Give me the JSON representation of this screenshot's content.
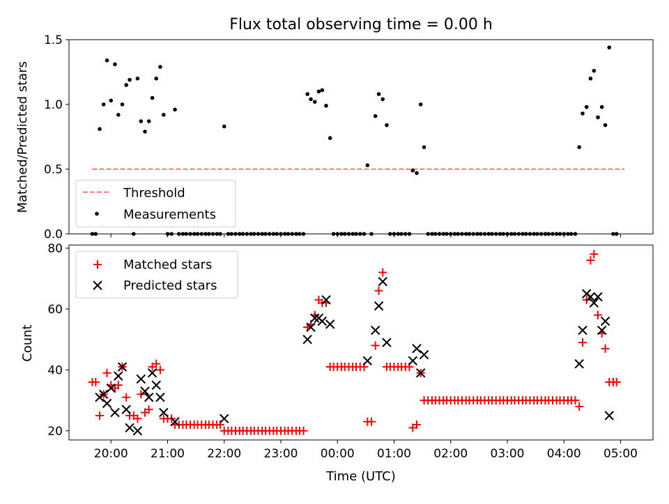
{
  "title": "Flux total observing time = 0.00 h",
  "colors": {
    "threshold": "#ff7f7f",
    "measurement": "#000000",
    "matched": "#ff0000",
    "predicted": "#000000"
  },
  "chart_data": [
    {
      "type": "scatter",
      "ylabel": "Matched/Predicted stars",
      "ylim": [
        0,
        1.5
      ],
      "yticks": [
        0.0,
        0.5,
        1.0,
        1.5
      ],
      "ytick_labels": [
        "0.0",
        "0.5",
        "1.0",
        "1.5"
      ],
      "xlim": [
        -4.33,
        6.07
      ],
      "legend": {
        "placement": "bottom-left",
        "threshold_label": "Threshold",
        "measurements_label": "Measurements"
      },
      "threshold": {
        "value": 0.5,
        "x_range": [
          -4.33,
          5.07
        ]
      },
      "measurements": [
        [
          -4.33,
          0
        ],
        [
          -4.27,
          0
        ],
        [
          -4.2,
          0.81
        ],
        [
          -4.13,
          1.0
        ],
        [
          -4.07,
          1.34
        ],
        [
          -4.0,
          1.03
        ],
        [
          -3.93,
          1.31
        ],
        [
          -3.87,
          0.92
        ],
        [
          -3.8,
          1.0
        ],
        [
          -3.73,
          1.15
        ],
        [
          -3.67,
          1.19
        ],
        [
          -3.6,
          0
        ],
        [
          -3.53,
          1.2
        ],
        [
          -3.47,
          0.87
        ],
        [
          -3.4,
          0.79
        ],
        [
          -3.33,
          0.87
        ],
        [
          -3.27,
          1.05
        ],
        [
          -3.2,
          1.2
        ],
        [
          -3.13,
          1.29
        ],
        [
          -3.07,
          0.92
        ],
        [
          -3.0,
          0
        ],
        [
          -2.93,
          0
        ],
        [
          -2.87,
          0.96
        ],
        [
          -2.8,
          0
        ],
        [
          -2.73,
          0
        ],
        [
          -2.67,
          0
        ],
        [
          -2.6,
          0
        ],
        [
          -2.53,
          0
        ],
        [
          -2.47,
          0
        ],
        [
          -2.4,
          0
        ],
        [
          -2.33,
          0
        ],
        [
          -2.27,
          0
        ],
        [
          -2.2,
          0
        ],
        [
          -2.13,
          0
        ],
        [
          -2.07,
          0
        ],
        [
          -2.0,
          0.83
        ],
        [
          -1.93,
          0
        ],
        [
          -1.87,
          0
        ],
        [
          -1.8,
          0
        ],
        [
          -1.73,
          0
        ],
        [
          -1.67,
          0
        ],
        [
          -1.6,
          0
        ],
        [
          -1.53,
          0
        ],
        [
          -1.47,
          0
        ],
        [
          -1.4,
          0
        ],
        [
          -1.33,
          0
        ],
        [
          -1.27,
          0
        ],
        [
          -1.2,
          0
        ],
        [
          -1.13,
          0
        ],
        [
          -1.07,
          0
        ],
        [
          -1.0,
          0
        ],
        [
          -0.93,
          0
        ],
        [
          -0.87,
          0
        ],
        [
          -0.8,
          0
        ],
        [
          -0.73,
          0
        ],
        [
          -0.67,
          0
        ],
        [
          -0.6,
          0
        ],
        [
          -0.53,
          1.08
        ],
        [
          -0.47,
          1.04
        ],
        [
          -0.4,
          1.02
        ],
        [
          -0.33,
          1.1
        ],
        [
          -0.27,
          1.11
        ],
        [
          -0.2,
          0.99
        ],
        [
          -0.13,
          0.74
        ],
        [
          -0.07,
          0
        ],
        [
          0.0,
          0
        ],
        [
          0.07,
          0
        ],
        [
          0.13,
          0
        ],
        [
          0.2,
          0
        ],
        [
          0.27,
          0
        ],
        [
          0.33,
          0
        ],
        [
          0.4,
          0
        ],
        [
          0.47,
          0
        ],
        [
          0.53,
          0.53
        ],
        [
          0.6,
          0
        ],
        [
          0.67,
          0.91
        ],
        [
          0.73,
          1.08
        ],
        [
          0.8,
          1.04
        ],
        [
          0.87,
          0.84
        ],
        [
          0.93,
          0
        ],
        [
          1.0,
          0
        ],
        [
          1.07,
          0
        ],
        [
          1.13,
          0
        ],
        [
          1.2,
          0
        ],
        [
          1.27,
          0
        ],
        [
          1.33,
          0.49
        ],
        [
          1.4,
          0.47
        ],
        [
          1.47,
          1.0
        ],
        [
          1.53,
          0.67
        ],
        [
          1.6,
          0
        ],
        [
          1.67,
          0
        ],
        [
          1.73,
          0
        ],
        [
          1.8,
          0
        ],
        [
          1.87,
          0
        ],
        [
          1.93,
          0
        ],
        [
          2.0,
          0
        ],
        [
          2.07,
          0
        ],
        [
          2.13,
          0
        ],
        [
          2.2,
          0
        ],
        [
          2.27,
          0
        ],
        [
          2.33,
          0
        ],
        [
          2.4,
          0
        ],
        [
          2.47,
          0
        ],
        [
          2.53,
          0
        ],
        [
          2.6,
          0
        ],
        [
          2.67,
          0
        ],
        [
          2.73,
          0
        ],
        [
          2.8,
          0
        ],
        [
          2.87,
          0
        ],
        [
          2.93,
          0
        ],
        [
          3.0,
          0
        ],
        [
          3.07,
          0
        ],
        [
          3.13,
          0
        ],
        [
          3.2,
          0
        ],
        [
          3.27,
          0
        ],
        [
          3.33,
          0
        ],
        [
          3.4,
          0
        ],
        [
          3.47,
          0
        ],
        [
          3.53,
          0
        ],
        [
          3.6,
          0
        ],
        [
          3.67,
          0
        ],
        [
          3.73,
          0
        ],
        [
          3.8,
          0
        ],
        [
          3.87,
          0
        ],
        [
          3.93,
          0
        ],
        [
          4.0,
          0
        ],
        [
          4.07,
          0
        ],
        [
          4.13,
          0
        ],
        [
          4.2,
          0
        ],
        [
          4.27,
          0.67
        ],
        [
          4.33,
          0.93
        ],
        [
          4.4,
          0.98
        ],
        [
          4.47,
          1.2
        ],
        [
          4.53,
          1.26
        ],
        [
          4.6,
          0.9
        ],
        [
          4.67,
          0.98
        ],
        [
          4.73,
          0.84
        ],
        [
          4.8,
          1.44
        ],
        [
          4.87,
          0
        ],
        [
          4.93,
          0
        ]
      ]
    },
    {
      "type": "scatter",
      "ylabel": "Count",
      "xlabel": "Time (UTC)",
      "ylim": [
        17,
        81
      ],
      "yticks": [
        20,
        40,
        60,
        80
      ],
      "ytick_labels": [
        "20",
        "40",
        "60",
        "80"
      ],
      "xlim": [
        -4.33,
        6.07
      ],
      "xticks": [
        -4,
        -3,
        -2,
        -1,
        0,
        1,
        2,
        3,
        4,
        5
      ],
      "xtick_labels": [
        "20:00",
        "21:00",
        "22:00",
        "23:00",
        "00:00",
        "01:00",
        "02:00",
        "03:00",
        "04:00",
        "05:00"
      ],
      "legend": {
        "placement": "top-left",
        "matched_label": "Matched stars",
        "predicted_label": "Predicted stars"
      },
      "matched": [
        [
          -4.33,
          36
        ],
        [
          -4.27,
          36
        ],
        [
          -4.2,
          25
        ],
        [
          -4.13,
          32
        ],
        [
          -4.07,
          39
        ],
        [
          -4.0,
          35
        ],
        [
          -3.93,
          34
        ],
        [
          -3.87,
          35
        ],
        [
          -3.8,
          41
        ],
        [
          -3.73,
          31
        ],
        [
          -3.67,
          25
        ],
        [
          -3.6,
          25
        ],
        [
          -3.53,
          24
        ],
        [
          -3.47,
          32
        ],
        [
          -3.4,
          26
        ],
        [
          -3.33,
          27
        ],
        [
          -3.27,
          41
        ],
        [
          -3.2,
          42
        ],
        [
          -3.13,
          40
        ],
        [
          -3.07,
          24
        ],
        [
          -3.0,
          24
        ],
        [
          -2.93,
          24
        ],
        [
          -2.87,
          22
        ],
        [
          -2.8,
          22
        ],
        [
          -2.73,
          22
        ],
        [
          -2.67,
          22
        ],
        [
          -2.6,
          22
        ],
        [
          -2.53,
          22
        ],
        [
          -2.47,
          22
        ],
        [
          -2.4,
          22
        ],
        [
          -2.33,
          22
        ],
        [
          -2.27,
          22
        ],
        [
          -2.2,
          22
        ],
        [
          -2.13,
          22
        ],
        [
          -2.07,
          22
        ],
        [
          -2.0,
          20
        ],
        [
          -1.93,
          20
        ],
        [
          -1.87,
          20
        ],
        [
          -1.8,
          20
        ],
        [
          -1.73,
          20
        ],
        [
          -1.67,
          20
        ],
        [
          -1.6,
          20
        ],
        [
          -1.53,
          20
        ],
        [
          -1.47,
          20
        ],
        [
          -1.4,
          20
        ],
        [
          -1.33,
          20
        ],
        [
          -1.27,
          20
        ],
        [
          -1.2,
          20
        ],
        [
          -1.13,
          20
        ],
        [
          -1.07,
          20
        ],
        [
          -1.0,
          20
        ],
        [
          -0.93,
          20
        ],
        [
          -0.87,
          20
        ],
        [
          -0.8,
          20
        ],
        [
          -0.73,
          20
        ],
        [
          -0.67,
          20
        ],
        [
          -0.6,
          20
        ],
        [
          -0.53,
          54
        ],
        [
          -0.47,
          55
        ],
        [
          -0.4,
          58
        ],
        [
          -0.33,
          63
        ],
        [
          -0.27,
          62
        ],
        [
          -0.2,
          62
        ],
        [
          -0.13,
          41
        ],
        [
          -0.07,
          41
        ],
        [
          0.0,
          41
        ],
        [
          0.07,
          41
        ],
        [
          0.13,
          41
        ],
        [
          0.2,
          41
        ],
        [
          0.27,
          41
        ],
        [
          0.33,
          41
        ],
        [
          0.4,
          41
        ],
        [
          0.47,
          41
        ],
        [
          0.53,
          23
        ],
        [
          0.6,
          23
        ],
        [
          0.67,
          48
        ],
        [
          0.73,
          66
        ],
        [
          0.8,
          72
        ],
        [
          0.87,
          41
        ],
        [
          0.93,
          41
        ],
        [
          1.0,
          41
        ],
        [
          1.07,
          41
        ],
        [
          1.13,
          41
        ],
        [
          1.2,
          41
        ],
        [
          1.27,
          41
        ],
        [
          1.33,
          21
        ],
        [
          1.4,
          22
        ],
        [
          1.47,
          39
        ],
        [
          1.53,
          30
        ],
        [
          1.6,
          30
        ],
        [
          1.67,
          30
        ],
        [
          1.73,
          30
        ],
        [
          1.8,
          30
        ],
        [
          1.87,
          30
        ],
        [
          1.93,
          30
        ],
        [
          2.0,
          30
        ],
        [
          2.07,
          30
        ],
        [
          2.13,
          30
        ],
        [
          2.2,
          30
        ],
        [
          2.27,
          30
        ],
        [
          2.33,
          30
        ],
        [
          2.4,
          30
        ],
        [
          2.47,
          30
        ],
        [
          2.53,
          30
        ],
        [
          2.6,
          30
        ],
        [
          2.67,
          30
        ],
        [
          2.73,
          30
        ],
        [
          2.8,
          30
        ],
        [
          2.87,
          30
        ],
        [
          2.93,
          30
        ],
        [
          3.0,
          30
        ],
        [
          3.07,
          30
        ],
        [
          3.13,
          30
        ],
        [
          3.2,
          30
        ],
        [
          3.27,
          30
        ],
        [
          3.33,
          30
        ],
        [
          3.4,
          30
        ],
        [
          3.47,
          30
        ],
        [
          3.53,
          30
        ],
        [
          3.6,
          30
        ],
        [
          3.67,
          30
        ],
        [
          3.73,
          30
        ],
        [
          3.8,
          30
        ],
        [
          3.87,
          30
        ],
        [
          3.93,
          30
        ],
        [
          4.0,
          30
        ],
        [
          4.07,
          30
        ],
        [
          4.13,
          30
        ],
        [
          4.2,
          30
        ],
        [
          4.27,
          28
        ],
        [
          4.33,
          49
        ],
        [
          4.4,
          63
        ],
        [
          4.47,
          76
        ],
        [
          4.53,
          78
        ],
        [
          4.6,
          58
        ],
        [
          4.67,
          52
        ],
        [
          4.73,
          47
        ],
        [
          4.8,
          36
        ],
        [
          4.87,
          36
        ],
        [
          4.93,
          36
        ]
      ],
      "predicted": [
        [
          -4.2,
          31
        ],
        [
          -4.13,
          32
        ],
        [
          -4.07,
          29
        ],
        [
          -4.0,
          34
        ],
        [
          -3.93,
          26
        ],
        [
          -3.87,
          38
        ],
        [
          -3.8,
          41
        ],
        [
          -3.73,
          27
        ],
        [
          -3.67,
          21
        ],
        [
          -3.53,
          20
        ],
        [
          -3.47,
          37
        ],
        [
          -3.4,
          33
        ],
        [
          -3.33,
          31
        ],
        [
          -3.27,
          39
        ],
        [
          -3.2,
          35
        ],
        [
          -3.13,
          31
        ],
        [
          -3.07,
          26
        ],
        [
          -2.87,
          23
        ],
        [
          -2.0,
          24
        ],
        [
          -0.53,
          50
        ],
        [
          -0.47,
          54
        ],
        [
          -0.4,
          57
        ],
        [
          -0.33,
          57
        ],
        [
          -0.27,
          56
        ],
        [
          -0.2,
          63
        ],
        [
          -0.13,
          55
        ],
        [
          0.53,
          43
        ],
        [
          0.67,
          53
        ],
        [
          0.73,
          61
        ],
        [
          0.8,
          69
        ],
        [
          0.87,
          49
        ],
        [
          1.33,
          43
        ],
        [
          1.4,
          47
        ],
        [
          1.47,
          39
        ],
        [
          1.53,
          45
        ],
        [
          4.27,
          42
        ],
        [
          4.33,
          53
        ],
        [
          4.4,
          65
        ],
        [
          4.47,
          64
        ],
        [
          4.53,
          62
        ],
        [
          4.6,
          64
        ],
        [
          4.67,
          53
        ],
        [
          4.73,
          56
        ],
        [
          4.8,
          25
        ]
      ]
    }
  ]
}
